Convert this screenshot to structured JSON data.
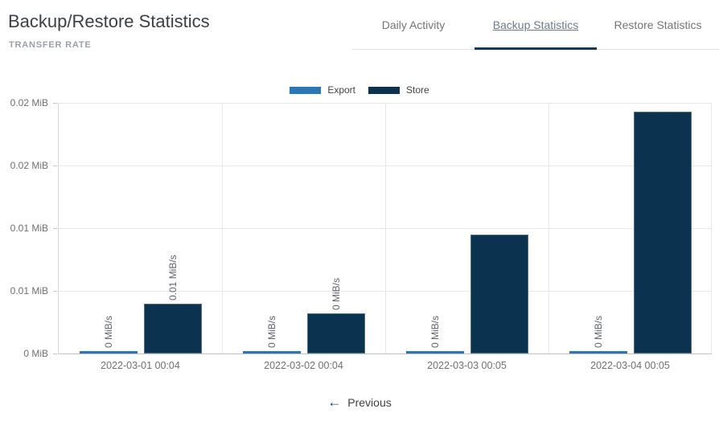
{
  "page": {
    "title": "Backup/Restore Statistics",
    "section_title": "TRANSFER RATE"
  },
  "tabs": [
    {
      "label": "Daily Activity",
      "active": false
    },
    {
      "label": "Backup Statistics",
      "active": true
    },
    {
      "label": "Restore Statistics",
      "active": false
    }
  ],
  "legend": [
    {
      "label": "Export",
      "color": "#2878b8"
    },
    {
      "label": "Store",
      "color": "#0b3350"
    }
  ],
  "chart_data": {
    "type": "bar",
    "title": "TRANSFER RATE",
    "categories": [
      "2022-03-01 00:04",
      "2022-03-02 00:04",
      "2022-03-03 00:05",
      "2022-03-04 00:05"
    ],
    "series": [
      {
        "name": "Export",
        "color": "#2878b8",
        "values": [
          0,
          0,
          0,
          0
        ],
        "bar_labels": [
          "0 MiB/s",
          "0 MiB/s",
          "0 MiB/s",
          "0 MiB/s"
        ]
      },
      {
        "name": "Store",
        "color": "#0b3350",
        "values": [
          0.004,
          0.0032,
          0.0095,
          0.0193
        ],
        "bar_labels": [
          "0.01 MiB/s",
          "0 MiB/s",
          "",
          ""
        ]
      }
    ],
    "y_ticks": [
      "0 MiB",
      "0.01 MiB",
      "0.01 MiB",
      "0.02 MiB",
      "0.02 MiB"
    ],
    "ylim": [
      0,
      0.02
    ],
    "ylabel_unit": "MiB",
    "grid": true,
    "legend_position": "top-center"
  },
  "footer": {
    "previous_label": "Previous"
  },
  "colors": {
    "accent": "#16395a",
    "export": "#2878b8",
    "store": "#0b3350",
    "grid": "#e7e7e7"
  }
}
